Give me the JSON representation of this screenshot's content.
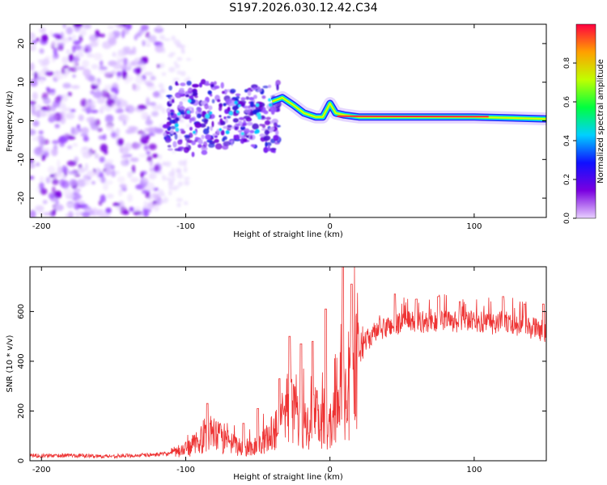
{
  "figure": {
    "title": "S197.2026.030.12.42.C34"
  },
  "chart_data": [
    {
      "type": "heatmap",
      "title": "",
      "xlabel": "Height of straight line (km)",
      "ylabel": "Frequency (Hz)",
      "xlim": [
        -208,
        150
      ],
      "ylim": [
        -25,
        25
      ],
      "x_ticks": [
        -200,
        -100,
        0,
        100
      ],
      "y_ticks": [
        -20,
        -10,
        0,
        10,
        20
      ],
      "colorbar": {
        "label": "Normalized spectral amplitude",
        "range": [
          0,
          1
        ],
        "ticks": [
          0.0,
          0.2,
          0.4,
          0.6,
          0.8
        ],
        "stops": [
          "#e8d0ff",
          "#7a00e0",
          "#1010ff",
          "#00d0ff",
          "#00ff40",
          "#c0ff00",
          "#ffa000",
          "#ff0040"
        ]
      },
      "ridge": {
        "description": "dominant narrow spectral line",
        "points": [
          [
            -40,
            5
          ],
          [
            -33,
            6
          ],
          [
            -25,
            4
          ],
          [
            -18,
            2
          ],
          [
            -10,
            1
          ],
          [
            -5,
            1
          ],
          [
            0,
            4.5
          ],
          [
            4,
            2
          ],
          [
            10,
            1.5
          ],
          [
            20,
            1
          ],
          [
            40,
            1
          ],
          [
            100,
            1
          ],
          [
            150,
            0.5
          ]
        ],
        "peak_range_x": [
          5,
          110
        ]
      },
      "noise_region": {
        "x": [
          -208,
          -118
        ],
        "y": [
          -25,
          25
        ]
      },
      "cluster_region": {
        "x": [
          -115,
          -35
        ],
        "y": [
          -12,
          10
        ]
      }
    },
    {
      "type": "line",
      "title": "",
      "xlabel": "Height of straight line (km)",
      "ylabel": "SNR (10 * v/v)",
      "xlim": [
        -208,
        150
      ],
      "ylim": [
        0,
        780
      ],
      "x_ticks": [
        -200,
        -100,
        0,
        100
      ],
      "y_ticks": [
        0,
        200,
        400,
        600
      ],
      "series": [
        {
          "name": "SNR",
          "color": "#ee3333",
          "x": [
            -208,
            -200,
            -180,
            -160,
            -140,
            -120,
            -110,
            -100,
            -90,
            -85,
            -80,
            -75,
            -70,
            -65,
            -60,
            -55,
            -50,
            -45,
            -40,
            -35,
            -30,
            -28,
            -25,
            -20,
            -15,
            -10,
            -5,
            0,
            5,
            8,
            10,
            12,
            15,
            20,
            25,
            30,
            40,
            50,
            60,
            70,
            80,
            90,
            100,
            110,
            120,
            130,
            140,
            150
          ],
          "values": [
            22,
            20,
            22,
            18,
            20,
            25,
            30,
            45,
            80,
            120,
            100,
            90,
            70,
            60,
            50,
            55,
            60,
            80,
            110,
            160,
            220,
            250,
            190,
            160,
            140,
            180,
            150,
            130,
            200,
            420,
            210,
            240,
            300,
            420,
            480,
            510,
            540,
            555,
            560,
            555,
            560,
            555,
            560,
            550,
            560,
            545,
            535,
            520
          ],
          "spikes": [
            [
              -85,
              230
            ],
            [
              -60,
              150
            ],
            [
              -50,
              210
            ],
            [
              -35,
              330
            ],
            [
              -28,
              500
            ],
            [
              -20,
              470
            ],
            [
              -12,
              480
            ],
            [
              -3,
              610
            ],
            [
              9,
              780
            ],
            [
              15,
              710
            ],
            [
              45,
              670
            ],
            [
              60,
              650
            ],
            [
              75,
              660
            ],
            [
              90,
              640
            ],
            [
              120,
              660
            ],
            [
              135,
              630
            ],
            [
              148,
              630
            ]
          ]
        }
      ]
    }
  ]
}
